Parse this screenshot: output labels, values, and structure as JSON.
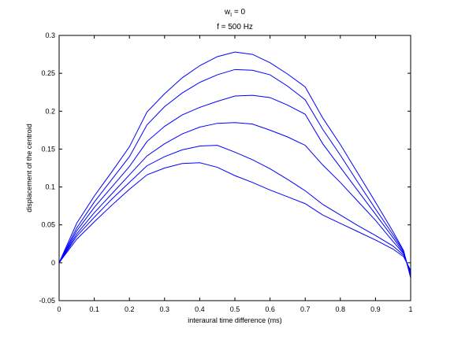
{
  "title_line1_main": "w",
  "title_line1_sub": "I",
  "title_line1_rest": " = 0",
  "title_line2": "f = 500 Hz",
  "chart_data": {
    "type": "line",
    "xlabel": "interaural time difference (ms)",
    "ylabel": "displacement of the centroid",
    "xlim": [
      0,
      1
    ],
    "ylim": [
      -0.05,
      0.3
    ],
    "xticks": [
      "0",
      "0.1",
      "0.2",
      "0.3",
      "0.4",
      "0.5",
      "0.6",
      "0.7",
      "0.8",
      "0.9",
      "1"
    ],
    "yticks": [
      "-0.05",
      "0",
      "0.05",
      "0.1",
      "0.15",
      "0.2",
      "0.25",
      "0.3"
    ],
    "grid": false,
    "line_color": "#0000ff",
    "x": [
      0,
      0.05,
      0.1,
      0.15,
      0.2,
      0.25,
      0.3,
      0.35,
      0.4,
      0.45,
      0.5,
      0.55,
      0.6,
      0.65,
      0.7,
      0.75,
      0.8,
      0.85,
      0.9,
      0.95,
      0.98,
      1.0
    ],
    "series": [
      {
        "values": [
          0,
          0.031,
          0.054,
          0.076,
          0.097,
          0.116,
          0.125,
          0.131,
          0.132,
          0.126,
          0.115,
          0.106,
          0.096,
          0.087,
          0.078,
          0.063,
          0.052,
          0.041,
          0.03,
          0.018,
          0.008,
          -0.01
        ]
      },
      {
        "values": [
          0,
          0.035,
          0.06,
          0.084,
          0.106,
          0.128,
          0.14,
          0.149,
          0.154,
          0.155,
          0.146,
          0.136,
          0.124,
          0.11,
          0.095,
          0.077,
          0.063,
          0.049,
          0.036,
          0.022,
          0.01,
          -0.012
        ]
      },
      {
        "values": [
          0,
          0.038,
          0.066,
          0.091,
          0.116,
          0.141,
          0.157,
          0.17,
          0.179,
          0.184,
          0.185,
          0.183,
          0.175,
          0.166,
          0.155,
          0.129,
          0.106,
          0.081,
          0.056,
          0.028,
          0.012,
          -0.015
        ]
      },
      {
        "values": [
          0,
          0.042,
          0.073,
          0.1,
          0.127,
          0.16,
          0.18,
          0.195,
          0.205,
          0.213,
          0.22,
          0.221,
          0.218,
          0.208,
          0.196,
          0.157,
          0.126,
          0.095,
          0.064,
          0.033,
          0.013,
          -0.017
        ]
      },
      {
        "values": [
          0,
          0.046,
          0.08,
          0.11,
          0.14,
          0.182,
          0.206,
          0.224,
          0.238,
          0.248,
          0.255,
          0.254,
          0.248,
          0.233,
          0.215,
          0.176,
          0.142,
          0.106,
          0.071,
          0.037,
          0.015,
          -0.018
        ]
      },
      {
        "values": [
          0,
          0.052,
          0.088,
          0.12,
          0.153,
          0.199,
          0.223,
          0.244,
          0.26,
          0.272,
          0.278,
          0.275,
          0.264,
          0.249,
          0.232,
          0.191,
          0.156,
          0.118,
          0.08,
          0.041,
          0.016,
          -0.02
        ]
      }
    ]
  }
}
